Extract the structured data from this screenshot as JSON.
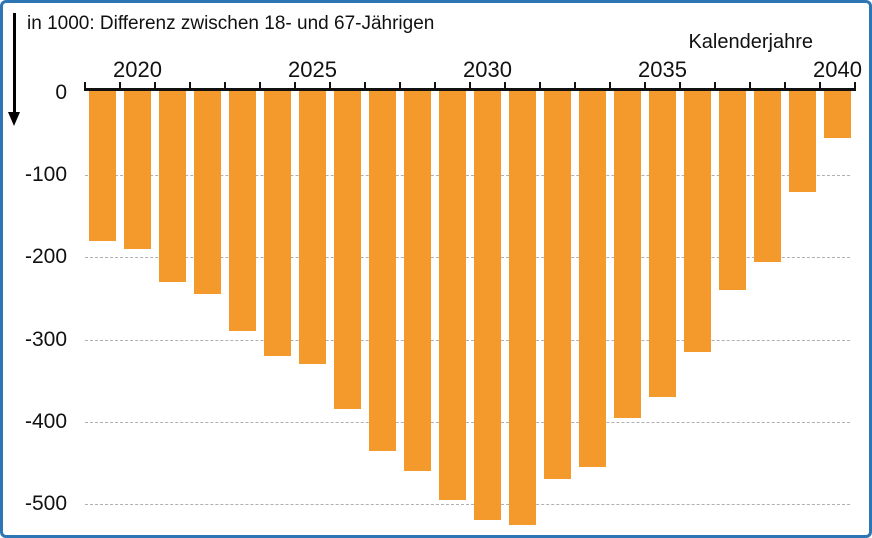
{
  "chart": {
    "title": "in 1000: Differenz zwischen 18- und 67-Jährigen",
    "xlabel": "Kalenderjahre"
  },
  "x_axis": {
    "tick_labels": [
      "2020",
      "2025",
      "2030",
      "2035",
      "2040"
    ]
  },
  "y_axis": {
    "tick_labels": [
      "0",
      "-100",
      "-200",
      "-300",
      "-400",
      "-500"
    ]
  },
  "colors": {
    "bar": "#f4992c",
    "frame_border": "#2e75b6",
    "gridline": "#b0b0b0",
    "axis": "#111111",
    "text": "#111111"
  },
  "chart_data": {
    "type": "bar",
    "title": "in 1000: Differenz zwischen 18- und 67-Jährigen",
    "xlabel": "Kalenderjahre",
    "ylabel": "in 1000",
    "x": [
      2019,
      2020,
      2021,
      2022,
      2023,
      2024,
      2025,
      2026,
      2027,
      2028,
      2029,
      2030,
      2031,
      2032,
      2033,
      2034,
      2035,
      2036,
      2037,
      2038,
      2039,
      2040
    ],
    "values": [
      -180,
      -190,
      -230,
      -245,
      -290,
      -320,
      -330,
      -385,
      -435,
      -460,
      -495,
      -520,
      -525,
      -470,
      -455,
      -395,
      -370,
      -315,
      -240,
      -205,
      -120,
      -55
    ],
    "xticks": [
      2020,
      2025,
      2030,
      2035,
      2040
    ],
    "yticks": [
      0,
      -100,
      -200,
      -300,
      -400,
      -500
    ],
    "ylim": [
      -550,
      0
    ],
    "grid": "horizontal-dashed",
    "legend": "none",
    "bar_color": "#f4992c",
    "orientation": "vertical-downward",
    "x_axis_position": "top"
  }
}
